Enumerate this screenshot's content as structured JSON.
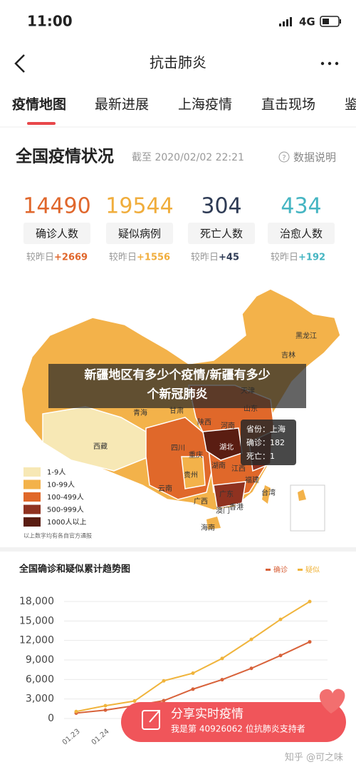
{
  "status": {
    "time": "11:00",
    "network": "4G"
  },
  "nav": {
    "title": "抗击肺炎"
  },
  "tabs": [
    "疫情地图",
    "最新进展",
    "上海疫情",
    "直击现场",
    "鉴"
  ],
  "summary": {
    "title": "全国疫情状况",
    "as_of": "截至 2020/02/02 22:21",
    "help": "数据说明",
    "stats": [
      {
        "value": 14490,
        "label": "确诊人数",
        "delta_label": "较昨日",
        "delta": "+2669",
        "color": "#e0672c"
      },
      {
        "value": 19544,
        "label": "疑似病例",
        "delta_label": "较昨日",
        "delta": "+1556",
        "color": "#f0ad3c"
      },
      {
        "value": 304,
        "label": "死亡人数",
        "delta_label": "较昨日",
        "delta": "+45",
        "color": "#2e3b55"
      },
      {
        "value": 434,
        "label": "治愈人数",
        "delta_label": "较昨日",
        "delta": "+192",
        "color": "#45b5c2"
      }
    ]
  },
  "map": {
    "regions": [
      "黑龙江",
      "吉林",
      "天津",
      "青海",
      "甘肃",
      "陕西",
      "河南",
      "山东",
      "西藏",
      "四川",
      "湖北",
      "重庆",
      "贵州",
      "湖南",
      "江西",
      "福建",
      "云南",
      "广西",
      "广东",
      "香港",
      "澳门",
      "海南",
      "台湾"
    ],
    "tooltip": [
      "省份：上海",
      "确诊：182",
      "死亡：1"
    ],
    "legend": [
      {
        "label": "1-9人",
        "color": "#f7e8b5"
      },
      {
        "label": "10-99人",
        "color": "#f3b24a"
      },
      {
        "label": "100-499人",
        "color": "#e0682a"
      },
      {
        "label": "500-999人",
        "color": "#8f3220"
      },
      {
        "label": "1000人以上",
        "color": "#5a1d12"
      }
    ],
    "footnote": "以上数字均有各自官方通报"
  },
  "overlay_caption": [
    "新疆地区有多少个疫情/新疆有多少",
    "个新冠肺炎"
  ],
  "chart_data": {
    "type": "line",
    "title": "全国确诊和疑似累计趋势图",
    "categories": [
      "01.23",
      "01.24",
      null,
      null,
      null,
      null,
      null,
      null,
      null
    ],
    "series": [
      {
        "name": "确诊",
        "color": "#d8623a",
        "values": [
          830,
          1287,
          1975,
          2744,
          4515,
          5974,
          7711,
          9692,
          11791
        ]
      },
      {
        "name": "疑似",
        "color": "#f0b43c",
        "values": [
          1072,
          1965,
          2684,
          5794,
          6973,
          9239,
          12167,
          15238,
          17988
        ]
      }
    ],
    "ylim": [
      0,
      18000
    ],
    "yticks": [
      0,
      {
        "value": 3000,
        "label": "3,000"
      },
      {
        "value": 6000,
        "label": "6,000"
      },
      {
        "value": 9000,
        "label": "9,000"
      },
      {
        "value": 12000,
        "label": "12,000"
      },
      {
        "value": 15000,
        "label": "15,000"
      },
      {
        "value": 18000,
        "label": "18,000"
      }
    ],
    "grid": true
  },
  "share": {
    "title": "分享实时疫情",
    "subtitle": "我是第 40926062 位抗肺炎支持者"
  },
  "watermark": "知乎 @可之味"
}
